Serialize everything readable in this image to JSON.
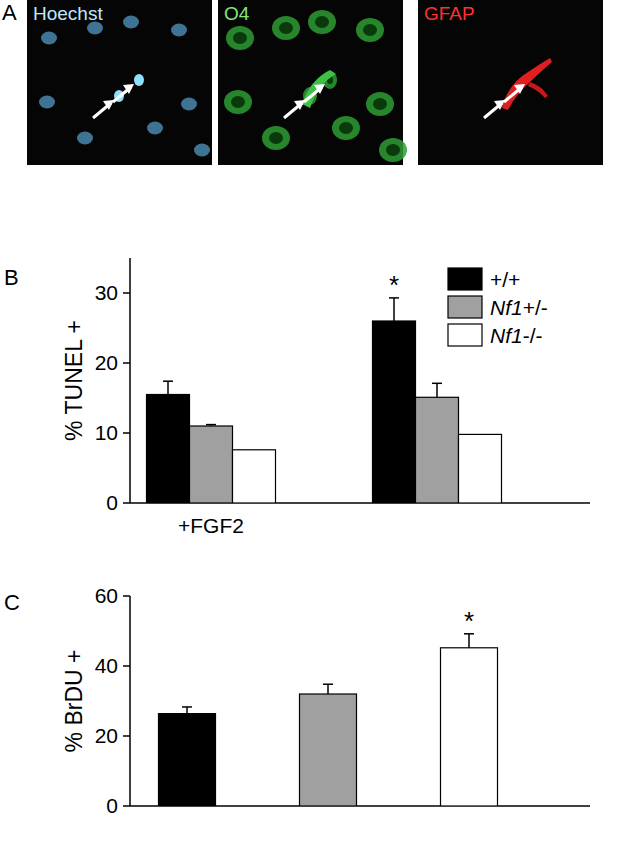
{
  "panel_a": {
    "label": "A",
    "images": [
      {
        "title": "Hoechst",
        "color": "#bfe6ff"
      },
      {
        "title": "O4",
        "color": "#7dea7a"
      },
      {
        "title": "GFAP",
        "color": "#ff3030"
      }
    ]
  },
  "chart_data": [
    {
      "type": "bar",
      "title": "B",
      "y_label": "% TUNEL +",
      "categories": [
        "+FGF2",
        null
      ],
      "series": [
        {
          "name": "+/+",
          "color": "#000000",
          "values": [
            15.5,
            26.0
          ],
          "errors": [
            1.9,
            3.3
          ]
        },
        {
          "name": "Nf1+/-",
          "color": "#a0a0a0",
          "values": [
            11.0,
            15.1
          ],
          "errors": [
            0.2,
            2.0
          ]
        },
        {
          "name": "Nf1-/-",
          "color": "#ffffff",
          "values": [
            7.6,
            9.8
          ]
        }
      ],
      "ylim": [
        0,
        35
      ],
      "yticks": [
        0,
        10,
        20,
        30
      ],
      "legend": "upper right",
      "annotations": [
        {
          "text": "*",
          "x": 1,
          "series": 0
        }
      ]
    },
    {
      "type": "bar",
      "title": "C",
      "y_label": "% BrDU +",
      "categories": [
        null,
        null,
        null
      ],
      "values": [
        26.4,
        32.0,
        45.2
      ],
      "errors": [
        1.9,
        2.8,
        4.0
      ],
      "colors": [
        "#000000",
        "#a0a0a0",
        "#ffffff"
      ],
      "ylim": [
        0,
        60
      ],
      "yticks": [
        0,
        20,
        40,
        60
      ],
      "tick_labels": "y",
      "annotations": [
        {
          "text": "*",
          "x": 2
        }
      ]
    }
  ]
}
